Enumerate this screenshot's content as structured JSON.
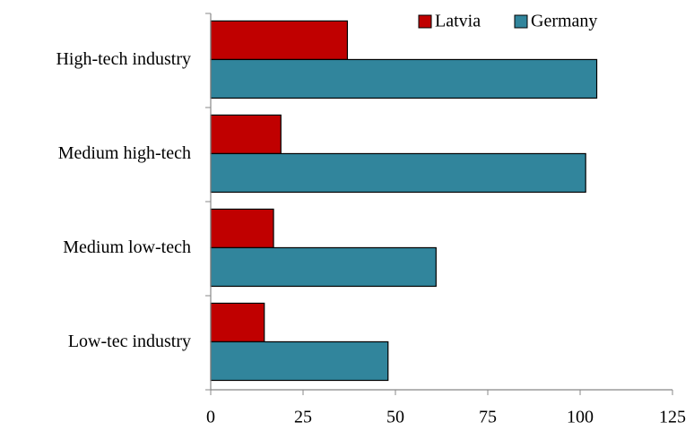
{
  "chart_data": {
    "type": "bar",
    "orientation": "horizontal",
    "categories": [
      "High-tech industry",
      "Medium high-tech",
      "Medium low-tech",
      "Low-tec industry"
    ],
    "series": [
      {
        "name": "Latvia",
        "color": "#c00000",
        "values": [
          37,
          19,
          17,
          14.5
        ]
      },
      {
        "name": "Germany",
        "color": "#31859c",
        "values": [
          104.5,
          101.5,
          61,
          48
        ]
      }
    ],
    "xlim": [
      0,
      125
    ],
    "xticks": [
      0,
      25,
      50,
      75,
      100,
      125
    ],
    "grid": false,
    "legend": "top-right"
  }
}
